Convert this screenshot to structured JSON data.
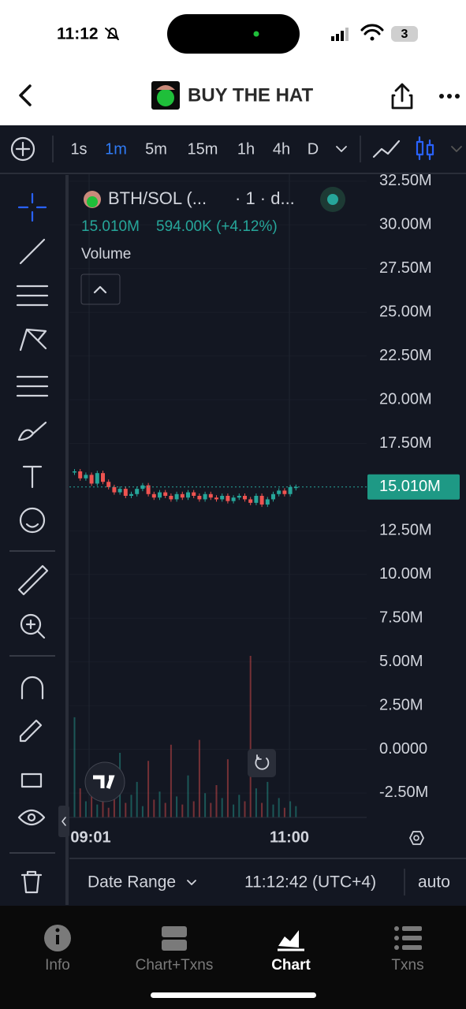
{
  "status_bar": {
    "time": "11:12",
    "battery": "3"
  },
  "header": {
    "title": "BUY THE HAT"
  },
  "toolbar": {
    "intervals": [
      "1s",
      "1m",
      "5m",
      "15m",
      "1h",
      "4h",
      "D"
    ]
  },
  "chart_data": {
    "type": "candlestick",
    "symbol": "BTH/SOL (...",
    "meta": "· 1 · d...",
    "last_label": "15.010M",
    "change_label": "594.00K (+4.12%)",
    "volume_label": "Volume",
    "up_color": "#26a69a",
    "down_color": "#ef5350",
    "closes": [
      15.9,
      15.5,
      15.7,
      15.2,
      15.8,
      15.3,
      15.0,
      14.7,
      14.9,
      14.5,
      14.6,
      14.9,
      15.1,
      14.6,
      14.4,
      14.7,
      14.5,
      14.3,
      14.6,
      14.4,
      14.7,
      14.5,
      14.3,
      14.6,
      14.4,
      14.3,
      14.5,
      14.2,
      14.4,
      14.5,
      14.3,
      14.1,
      14.5,
      14.0,
      14.3,
      14.6,
      14.8,
      14.6,
      15.0,
      15.01
    ],
    "volume": [
      62,
      18,
      10,
      25,
      8,
      30,
      6,
      12,
      40,
      9,
      14,
      22,
      7,
      35,
      11,
      16,
      9,
      45,
      13,
      8,
      26,
      10,
      48,
      15,
      9,
      20,
      12,
      36,
      8,
      14,
      10,
      100,
      18,
      9,
      22,
      8,
      12,
      6,
      10,
      7
    ],
    "price": {
      "value": 15.01,
      "label": "15.010M"
    },
    "ylim": [
      -3.9,
      32.9
    ],
    "yticks": [
      {
        "value": 32.5,
        "label": "32.50M"
      },
      {
        "value": 30,
        "label": "30.00M"
      },
      {
        "value": 27.5,
        "label": "27.50M"
      },
      {
        "value": 25,
        "label": "25.00M"
      },
      {
        "value": 22.5,
        "label": "22.50M"
      },
      {
        "value": 20,
        "label": "20.00M"
      },
      {
        "value": 17.5,
        "label": "17.50M"
      },
      {
        "value": 12.5,
        "label": "12.50M"
      },
      {
        "value": 10,
        "label": "10.00M"
      },
      {
        "value": 7.5,
        "label": "7.50M"
      },
      {
        "value": 5,
        "label": "5.00M"
      },
      {
        "value": 2.5,
        "label": "2.50M"
      },
      {
        "value": 0,
        "label": "0.0000"
      },
      {
        "value": -2.5,
        "label": "-2.50M"
      }
    ],
    "xtick_labels": [
      "09:01",
      "11:00"
    ],
    "grid": true
  },
  "bottom_bar": {
    "range": "Date Range",
    "clock": "11:12:42 (UTC+4)",
    "scale": "auto"
  },
  "tabs": [
    "Info",
    "Chart+Txns",
    "Chart",
    "Txns"
  ]
}
